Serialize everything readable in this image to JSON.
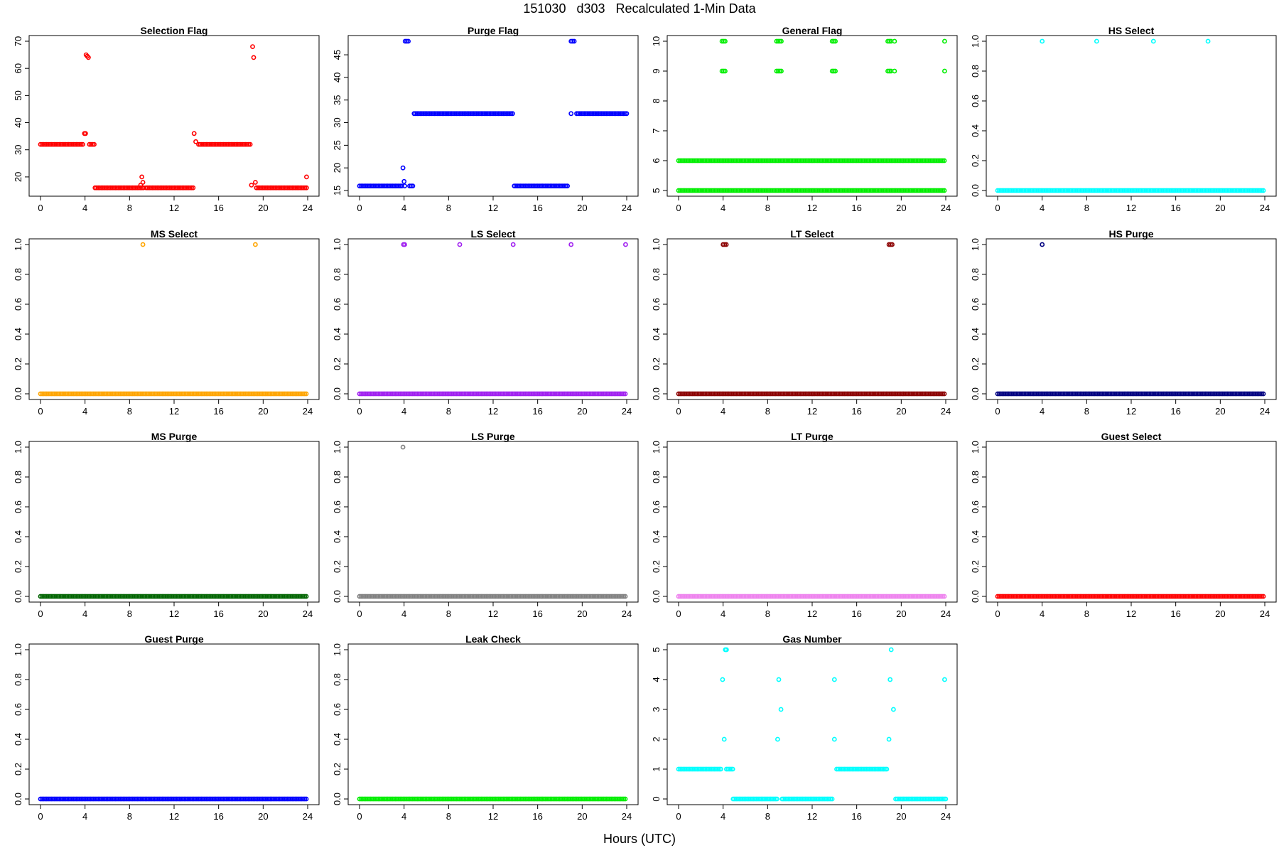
{
  "figure": {
    "title": "151030   d303   Recalculated 1-Min Data",
    "xlabel": "Hours (UTC)"
  },
  "chart_data": [
    {
      "type": "scatter",
      "title": "Selection Flag",
      "color": "#ff0000",
      "xlim": [
        0,
        24
      ],
      "ylim": [
        15,
        70
      ],
      "xticks": [
        "0",
        "4",
        "8",
        "12",
        "16",
        "20",
        "24"
      ],
      "yticks": [
        "20",
        "30",
        "40",
        "50",
        "60",
        "70"
      ],
      "segments": [
        [
          0,
          3.9,
          32
        ],
        [
          4.4,
          4.9,
          32
        ],
        [
          4.9,
          9.3,
          16
        ],
        [
          9.5,
          13.8,
          16
        ],
        [
          14.2,
          18.9,
          32
        ],
        [
          19.4,
          24,
          16
        ]
      ],
      "points": [
        [
          3.95,
          36
        ],
        [
          4.05,
          36
        ],
        [
          4.1,
          65
        ],
        [
          4.2,
          64.5
        ],
        [
          4.3,
          64
        ],
        [
          9.0,
          17
        ],
        [
          9.1,
          20
        ],
        [
          9.2,
          18
        ],
        [
          13.8,
          36
        ],
        [
          13.95,
          33
        ],
        [
          18.95,
          17
        ],
        [
          19.05,
          68
        ],
        [
          19.15,
          64
        ],
        [
          19.3,
          18
        ],
        [
          23.9,
          20
        ]
      ]
    },
    {
      "type": "scatter",
      "title": "Purge Flag",
      "color": "#0000ff",
      "xlim": [
        0,
        24
      ],
      "ylim": [
        15,
        48
      ],
      "xticks": [
        "0",
        "4",
        "8",
        "12",
        "16",
        "20",
        "24"
      ],
      "yticks": [
        "15",
        "20",
        "25",
        "30",
        "35",
        "40",
        "45"
      ],
      "segments": [
        [
          0,
          3.9,
          16
        ],
        [
          4.5,
          4.9,
          16
        ],
        [
          4.1,
          4.4,
          48
        ],
        [
          4.9,
          13.8,
          32
        ],
        [
          13.9,
          18.8,
          16
        ],
        [
          19.0,
          19.4,
          48
        ],
        [
          19.5,
          24,
          32
        ]
      ],
      "points": [
        [
          3.9,
          20
        ],
        [
          4.0,
          17
        ],
        [
          4.05,
          16
        ],
        [
          19.0,
          32
        ]
      ]
    },
    {
      "type": "scatter",
      "title": "General Flag",
      "color": "#00ee00",
      "xlim": [
        0,
        24
      ],
      "ylim": [
        5,
        10
      ],
      "xticks": [
        "0",
        "4",
        "8",
        "12",
        "16",
        "20",
        "24"
      ],
      "yticks": [
        "5",
        "6",
        "7",
        "8",
        "9",
        "10"
      ],
      "segments": [
        [
          0,
          24,
          5
        ],
        [
          0,
          24,
          6
        ],
        [
          3.9,
          4.3,
          9
        ],
        [
          3.9,
          4.3,
          10
        ],
        [
          8.8,
          9.3,
          9
        ],
        [
          8.8,
          9.3,
          10
        ],
        [
          13.8,
          14.1,
          9
        ],
        [
          13.8,
          14.1,
          10
        ],
        [
          18.8,
          19.1,
          9
        ],
        [
          18.8,
          19.1,
          10
        ]
      ],
      "points": [
        [
          19.4,
          9
        ],
        [
          19.4,
          10
        ],
        [
          23.9,
          9
        ],
        [
          23.9,
          10
        ]
      ]
    },
    {
      "type": "scatter",
      "title": "HS Select",
      "color": "#00ffff",
      "xlim": [
        0,
        24
      ],
      "ylim": [
        0,
        1
      ],
      "xticks": [
        "0",
        "4",
        "8",
        "12",
        "16",
        "20",
        "24"
      ],
      "yticks": [
        "0.0",
        "0.2",
        "0.4",
        "0.6",
        "0.8",
        "1.0"
      ],
      "segments": [
        [
          0,
          24,
          0
        ]
      ],
      "points": [
        [
          4.0,
          1
        ],
        [
          8.9,
          1
        ],
        [
          14.0,
          1
        ],
        [
          18.9,
          1
        ]
      ]
    },
    {
      "type": "scatter",
      "title": "MS Select",
      "color": "#ffa500",
      "xlim": [
        0,
        24
      ],
      "ylim": [
        0,
        1
      ],
      "xticks": [
        "0",
        "4",
        "8",
        "12",
        "16",
        "20",
        "24"
      ],
      "yticks": [
        "0.0",
        "0.2",
        "0.4",
        "0.6",
        "0.8",
        "1.0"
      ],
      "segments": [
        [
          0,
          24,
          0
        ]
      ],
      "points": [
        [
          9.2,
          1
        ],
        [
          19.3,
          1
        ]
      ]
    },
    {
      "type": "scatter",
      "title": "LS Select",
      "color": "#a020f0",
      "xlim": [
        0,
        24
      ],
      "ylim": [
        0,
        1
      ],
      "xticks": [
        "0",
        "4",
        "8",
        "12",
        "16",
        "20",
        "24"
      ],
      "yticks": [
        "0.0",
        "0.2",
        "0.4",
        "0.6",
        "0.8",
        "1.0"
      ],
      "segments": [
        [
          0,
          24,
          0
        ]
      ],
      "points": [
        [
          3.95,
          1
        ],
        [
          4.05,
          1
        ],
        [
          9.0,
          1
        ],
        [
          13.8,
          1
        ],
        [
          19.0,
          1
        ],
        [
          23.9,
          1
        ]
      ]
    },
    {
      "type": "scatter",
      "title": "LT Select",
      "color": "#8b0000",
      "xlim": [
        0,
        24
      ],
      "ylim": [
        0,
        1
      ],
      "xticks": [
        "0",
        "4",
        "8",
        "12",
        "16",
        "20",
        "24"
      ],
      "yticks": [
        "0.0",
        "0.2",
        "0.4",
        "0.6",
        "0.8",
        "1.0"
      ],
      "segments": [
        [
          0,
          24,
          0
        ],
        [
          4.0,
          4.4,
          1
        ],
        [
          18.9,
          19.3,
          1
        ]
      ],
      "points": []
    },
    {
      "type": "scatter",
      "title": "HS Purge",
      "color": "#000080",
      "xlim": [
        0,
        24
      ],
      "ylim": [
        0,
        1
      ],
      "xticks": [
        "0",
        "4",
        "8",
        "12",
        "16",
        "20",
        "24"
      ],
      "yticks": [
        "0.0",
        "0.2",
        "0.4",
        "0.6",
        "0.8",
        "1.0"
      ],
      "segments": [
        [
          0,
          24,
          0
        ]
      ],
      "points": [
        [
          4.0,
          1
        ]
      ]
    },
    {
      "type": "scatter",
      "title": "MS Purge",
      "color": "#006400",
      "xlim": [
        0,
        24
      ],
      "ylim": [
        0,
        1
      ],
      "xticks": [
        "0",
        "4",
        "8",
        "12",
        "16",
        "20",
        "24"
      ],
      "yticks": [
        "0.0",
        "0.2",
        "0.4",
        "0.6",
        "0.8",
        "1.0"
      ],
      "segments": [
        [
          0,
          24,
          0
        ]
      ],
      "points": []
    },
    {
      "type": "scatter",
      "title": "LS Purge",
      "color": "#808080",
      "xlim": [
        0,
        24
      ],
      "ylim": [
        0,
        1
      ],
      "xticks": [
        "0",
        "4",
        "8",
        "12",
        "16",
        "20",
        "24"
      ],
      "yticks": [
        "0.0",
        "0.2",
        "0.4",
        "0.6",
        "0.8",
        "1.0"
      ],
      "segments": [
        [
          0,
          24,
          0
        ]
      ],
      "points": [
        [
          3.9,
          1
        ]
      ]
    },
    {
      "type": "scatter",
      "title": "LT Purge",
      "color": "#ee82ee",
      "xlim": [
        0,
        24
      ],
      "ylim": [
        0,
        1
      ],
      "xticks": [
        "0",
        "4",
        "8",
        "12",
        "16",
        "20",
        "24"
      ],
      "yticks": [
        "0.0",
        "0.2",
        "0.4",
        "0.6",
        "0.8",
        "1.0"
      ],
      "segments": [
        [
          0,
          24,
          0
        ]
      ],
      "points": []
    },
    {
      "type": "scatter",
      "title": "Guest Select",
      "color": "#ff0000",
      "xlim": [
        0,
        24
      ],
      "ylim": [
        0,
        1
      ],
      "xticks": [
        "0",
        "4",
        "8",
        "12",
        "16",
        "20",
        "24"
      ],
      "yticks": [
        "0.0",
        "0.2",
        "0.4",
        "0.6",
        "0.8",
        "1.0"
      ],
      "segments": [
        [
          0,
          24,
          0
        ]
      ],
      "points": []
    },
    {
      "type": "scatter",
      "title": "Guest Purge",
      "color": "#0000ff",
      "xlim": [
        0,
        24
      ],
      "ylim": [
        0,
        1
      ],
      "xticks": [
        "0",
        "4",
        "8",
        "12",
        "16",
        "20",
        "24"
      ],
      "yticks": [
        "0.0",
        "0.2",
        "0.4",
        "0.6",
        "0.8",
        "1.0"
      ],
      "segments": [
        [
          0,
          24,
          0
        ]
      ],
      "points": []
    },
    {
      "type": "scatter",
      "title": "Leak Check",
      "color": "#00ee00",
      "xlim": [
        0,
        24
      ],
      "ylim": [
        0,
        1
      ],
      "xticks": [
        "0",
        "4",
        "8",
        "12",
        "16",
        "20",
        "24"
      ],
      "yticks": [
        "0.0",
        "0.2",
        "0.4",
        "0.6",
        "0.8",
        "1.0"
      ],
      "segments": [
        [
          0,
          24,
          0
        ]
      ],
      "points": []
    },
    {
      "type": "scatter",
      "title": "Gas Number",
      "color": "#00ffff",
      "xlim": [
        0,
        24
      ],
      "ylim": [
        0,
        5
      ],
      "xticks": [
        "0",
        "4",
        "8",
        "12",
        "16",
        "20",
        "24"
      ],
      "yticks": [
        "0",
        "1",
        "2",
        "3",
        "4",
        "5"
      ],
      "segments": [
        [
          0,
          3.9,
          1
        ],
        [
          4.3,
          4.9,
          1
        ],
        [
          4.9,
          8.9,
          0
        ],
        [
          9.3,
          13.9,
          0
        ],
        [
          14.2,
          18.8,
          1
        ],
        [
          19.5,
          24,
          0
        ]
      ],
      "points": [
        [
          3.95,
          4
        ],
        [
          4.1,
          2
        ],
        [
          4.2,
          5
        ],
        [
          4.3,
          5
        ],
        [
          9.0,
          4
        ],
        [
          8.9,
          2
        ],
        [
          9.2,
          3
        ],
        [
          14.0,
          4
        ],
        [
          14.0,
          2
        ],
        [
          18.9,
          2
        ],
        [
          19.0,
          4
        ],
        [
          19.1,
          5
        ],
        [
          19.3,
          3
        ],
        [
          23.9,
          4
        ]
      ]
    }
  ]
}
